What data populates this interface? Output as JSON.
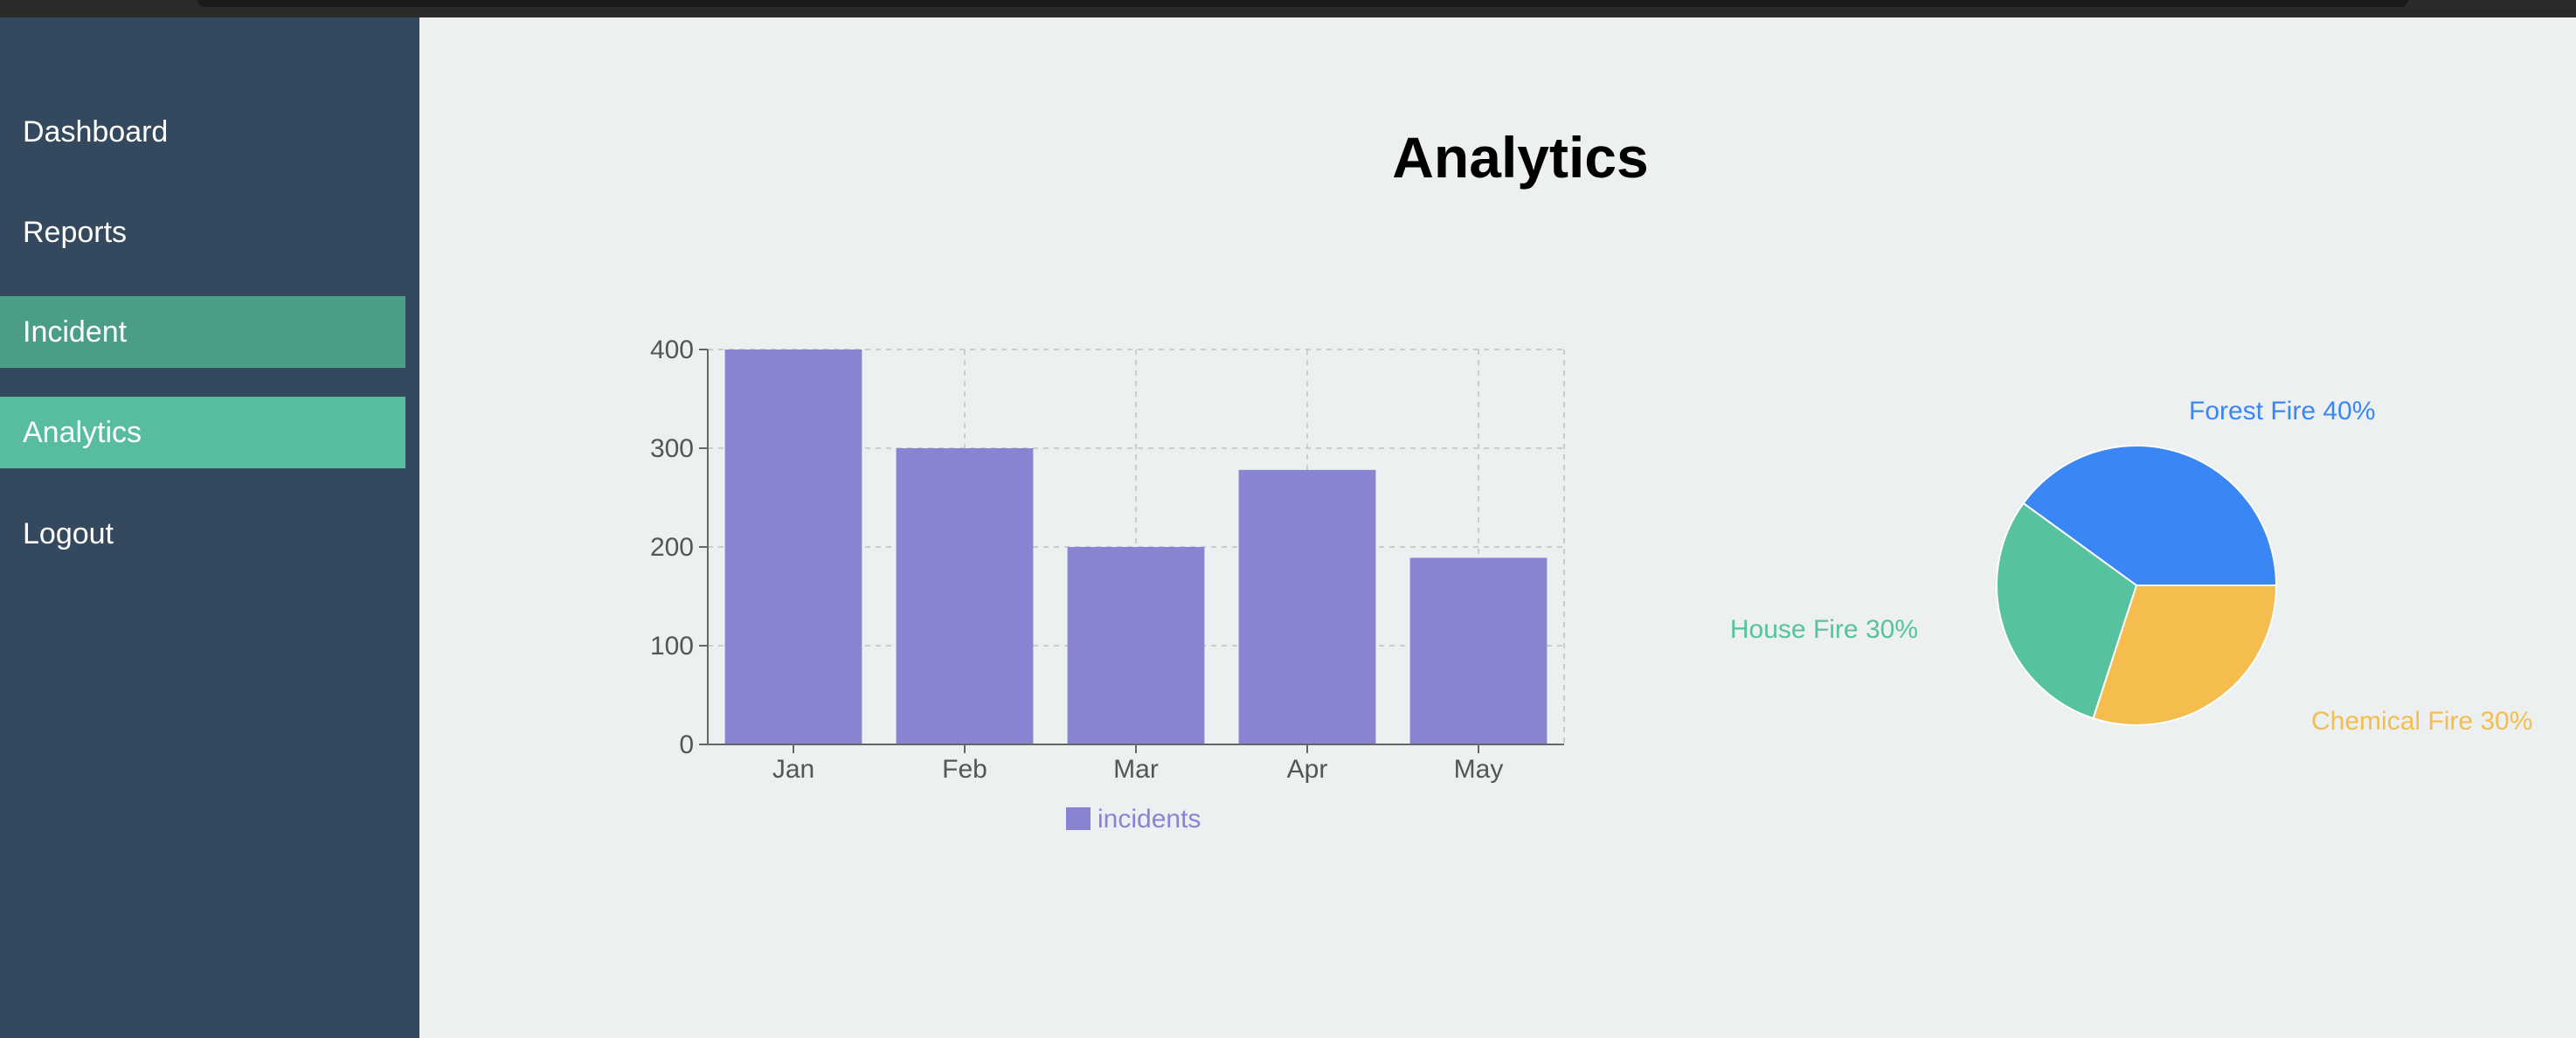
{
  "sidebar": {
    "items": [
      {
        "label": "Dashboard",
        "bg": ""
      },
      {
        "label": "Reports",
        "bg": ""
      },
      {
        "label": "Incident",
        "bg": "#4a9e86"
      },
      {
        "label": "Analytics",
        "bg": "#58bd9e"
      },
      {
        "label": "Logout",
        "bg": ""
      }
    ]
  },
  "main": {
    "title": "Analytics"
  },
  "colors": {
    "sidebar_bg": "#34495e",
    "incident_bg": "#4a9e86",
    "active_bg": "#58bd9e",
    "bar_fill": "#8884d2",
    "pie_forest": "#3b86f5",
    "pie_house": "#57c2a0",
    "pie_chemical": "#f5bd4e"
  },
  "chart_data": [
    {
      "type": "bar",
      "categories": [
        "Jan",
        "Feb",
        "Mar",
        "Apr",
        "May"
      ],
      "series": [
        {
          "name": "incidents",
          "values": [
            400,
            300,
            200,
            278,
            189
          ],
          "color": "#8884d2"
        }
      ],
      "yticks": [
        0,
        100,
        200,
        300,
        400
      ],
      "ylim": [
        0,
        400
      ],
      "grid": true,
      "legend": "bottom"
    },
    {
      "type": "pie",
      "slices": [
        {
          "label": "Forest Fire 40%",
          "value": 40,
          "color": "#3b86f5"
        },
        {
          "label": "Chemical Fire 30%",
          "value": 30,
          "color": "#f5bd4e"
        },
        {
          "label": "House Fire 30%",
          "value": 30,
          "color": "#57c2a0"
        }
      ]
    }
  ]
}
